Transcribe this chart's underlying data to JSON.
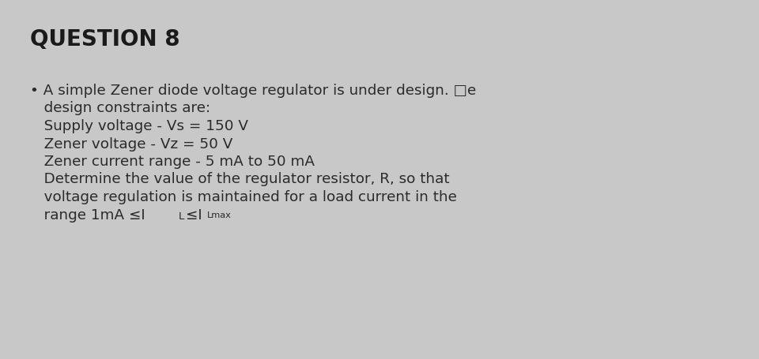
{
  "title": "QUESTION 8",
  "background_color": "#c8c8c8",
  "title_color": "#1a1a1a",
  "title_fontsize": 20,
  "text_color": "#2a2a2a",
  "body_fontsize": 13.2,
  "line1": "• A simple Zener diode voltage regulator is under design. □e",
  "line2": "   design constraints are:",
  "line3": "   Supply voltage - Vs = 150 V",
  "line4": "   Zener voltage - Vz = 50 V",
  "line5": "   Zener current range - 5 mA to 50 mA",
  "line6": "   Determine the value of the regulator resistor, R, so that",
  "line7": "   voltage regulation is maintained for a load current in the",
  "line8_normal": "   range 1mA ≤I",
  "line8_sub_L": "L",
  "line8_mid": "≤I",
  "line8_sub_Lmax": "Lmax",
  "font_family": "DejaVu Sans"
}
